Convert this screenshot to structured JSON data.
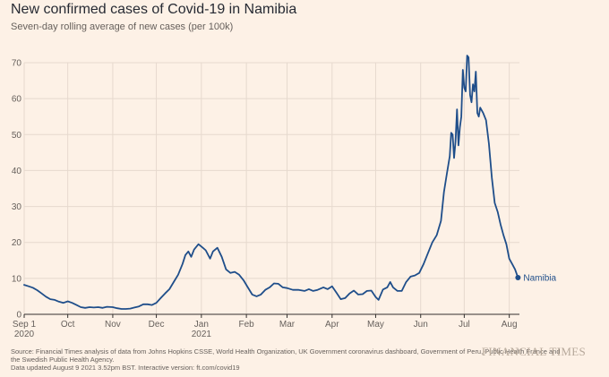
{
  "header": {
    "title": "New confirmed cases of Covid-19 in Namibia",
    "subtitle": "Seven-day rolling average of new cases (per 100k)"
  },
  "footer": {
    "source_line1": "Source: Financial Times analysis of data from Johns Hopkins CSSE, World Health Organization, UK Government coronavirus dashboard, Government of Peru, Public Health France and",
    "source_line2": "the Swedish Public Health Agency.",
    "updated": "Data updated August 9 2021 3.52pm BST. Interactive version: ft.com/covid19",
    "logo": "FINANCIAL TIMES"
  },
  "colors": {
    "background": "#fdf1e6",
    "line": "#1f4e8a",
    "grid": "#e6d9ce",
    "axis": "#33302e"
  },
  "chart_data": {
    "type": "line",
    "title": "New confirmed cases of Covid-19 in Namibia",
    "subtitle": "Seven-day rolling average of new cases (per 100k)",
    "xlabel": "",
    "ylabel": "",
    "x_range": [
      "2020-09-01",
      "2021-08-08"
    ],
    "ylim": [
      0,
      70
    ],
    "y_ticks": [
      0,
      10,
      20,
      30,
      40,
      50,
      60,
      70
    ],
    "x_ticks": [
      {
        "date": "2020-09-01",
        "label": "Sep 1",
        "sublabel": "2020"
      },
      {
        "date": "2020-10-01",
        "label": "Oct",
        "sublabel": ""
      },
      {
        "date": "2020-11-01",
        "label": "Nov",
        "sublabel": ""
      },
      {
        "date": "2020-12-01",
        "label": "Dec",
        "sublabel": ""
      },
      {
        "date": "2021-01-01",
        "label": "Jan",
        "sublabel": "2021"
      },
      {
        "date": "2021-02-01",
        "label": "Feb",
        "sublabel": ""
      },
      {
        "date": "2021-03-01",
        "label": "Mar",
        "sublabel": ""
      },
      {
        "date": "2021-04-01",
        "label": "Apr",
        "sublabel": ""
      },
      {
        "date": "2021-05-01",
        "label": "May",
        "sublabel": ""
      },
      {
        "date": "2021-06-01",
        "label": "Jun",
        "sublabel": ""
      },
      {
        "date": "2021-07-01",
        "label": "Jul",
        "sublabel": ""
      },
      {
        "date": "2021-08-01",
        "label": "Aug",
        "sublabel": ""
      }
    ],
    "grid": true,
    "series": [
      {
        "name": "Namibia",
        "points": [
          [
            "2020-09-01",
            8.2
          ],
          [
            "2020-09-04",
            7.8
          ],
          [
            "2020-09-07",
            7.4
          ],
          [
            "2020-09-10",
            6.7
          ],
          [
            "2020-09-13",
            5.8
          ],
          [
            "2020-09-16",
            4.9
          ],
          [
            "2020-09-19",
            4.2
          ],
          [
            "2020-09-22",
            4.0
          ],
          [
            "2020-09-25",
            3.5
          ],
          [
            "2020-09-28",
            3.2
          ],
          [
            "2020-10-01",
            3.6
          ],
          [
            "2020-10-04",
            3.2
          ],
          [
            "2020-10-07",
            2.6
          ],
          [
            "2020-10-10",
            2.0
          ],
          [
            "2020-10-13",
            1.8
          ],
          [
            "2020-10-16",
            2.0
          ],
          [
            "2020-10-19",
            1.9
          ],
          [
            "2020-10-22",
            2.0
          ],
          [
            "2020-10-25",
            1.8
          ],
          [
            "2020-10-28",
            2.1
          ],
          [
            "2020-11-01",
            2.0
          ],
          [
            "2020-11-04",
            1.7
          ],
          [
            "2020-11-07",
            1.5
          ],
          [
            "2020-11-10",
            1.5
          ],
          [
            "2020-11-13",
            1.6
          ],
          [
            "2020-11-16",
            1.9
          ],
          [
            "2020-11-19",
            2.2
          ],
          [
            "2020-11-22",
            2.8
          ],
          [
            "2020-11-25",
            2.8
          ],
          [
            "2020-11-28",
            2.6
          ],
          [
            "2020-12-01",
            3.2
          ],
          [
            "2020-12-04",
            4.5
          ],
          [
            "2020-12-07",
            5.8
          ],
          [
            "2020-12-10",
            7.0
          ],
          [
            "2020-12-13",
            9.0
          ],
          [
            "2020-12-16",
            11.0
          ],
          [
            "2020-12-19",
            14.0
          ],
          [
            "2020-12-21",
            16.5
          ],
          [
            "2020-12-23",
            17.5
          ],
          [
            "2020-12-25",
            16.0
          ],
          [
            "2020-12-27",
            18.0
          ],
          [
            "2020-12-30",
            19.5
          ],
          [
            "2021-01-02",
            18.5
          ],
          [
            "2021-01-04",
            17.8
          ],
          [
            "2021-01-07",
            15.5
          ],
          [
            "2021-01-09",
            17.5
          ],
          [
            "2021-01-12",
            18.5
          ],
          [
            "2021-01-15",
            16.0
          ],
          [
            "2021-01-18",
            12.5
          ],
          [
            "2021-01-21",
            11.5
          ],
          [
            "2021-01-24",
            11.8
          ],
          [
            "2021-01-27",
            11.0
          ],
          [
            "2021-01-30",
            9.5
          ],
          [
            "2021-02-02",
            7.5
          ],
          [
            "2021-02-05",
            5.5
          ],
          [
            "2021-02-08",
            5.0
          ],
          [
            "2021-02-11",
            5.5
          ],
          [
            "2021-02-14",
            6.8
          ],
          [
            "2021-02-17",
            7.5
          ],
          [
            "2021-02-20",
            8.6
          ],
          [
            "2021-02-23",
            8.5
          ],
          [
            "2021-02-26",
            7.5
          ],
          [
            "2021-03-01",
            7.3
          ],
          [
            "2021-03-05",
            6.8
          ],
          [
            "2021-03-09",
            6.8
          ],
          [
            "2021-03-13",
            6.5
          ],
          [
            "2021-03-16",
            7.0
          ],
          [
            "2021-03-19",
            6.5
          ],
          [
            "2021-03-22",
            6.8
          ],
          [
            "2021-03-26",
            7.5
          ],
          [
            "2021-03-29",
            7.0
          ],
          [
            "2021-04-01",
            7.8
          ],
          [
            "2021-04-04",
            6.0
          ],
          [
            "2021-04-07",
            4.2
          ],
          [
            "2021-04-10",
            4.5
          ],
          [
            "2021-04-13",
            5.8
          ],
          [
            "2021-04-16",
            6.6
          ],
          [
            "2021-04-19",
            5.5
          ],
          [
            "2021-04-22",
            5.6
          ],
          [
            "2021-04-25",
            6.5
          ],
          [
            "2021-04-28",
            6.6
          ],
          [
            "2021-05-01",
            4.8
          ],
          [
            "2021-05-03",
            4.0
          ],
          [
            "2021-05-06",
            6.9
          ],
          [
            "2021-05-09",
            7.5
          ],
          [
            "2021-05-11",
            9.0
          ],
          [
            "2021-05-13",
            7.5
          ],
          [
            "2021-05-16",
            6.5
          ],
          [
            "2021-05-19",
            6.5
          ],
          [
            "2021-05-22",
            9.0
          ],
          [
            "2021-05-25",
            10.5
          ],
          [
            "2021-05-28",
            10.8
          ],
          [
            "2021-05-31",
            11.5
          ],
          [
            "2021-06-03",
            14.0
          ],
          [
            "2021-06-06",
            17.0
          ],
          [
            "2021-06-09",
            20.0
          ],
          [
            "2021-06-12",
            22.0
          ],
          [
            "2021-06-15",
            26.0
          ],
          [
            "2021-06-17",
            34.0
          ],
          [
            "2021-06-19",
            39.0
          ],
          [
            "2021-06-21",
            44.0
          ],
          [
            "2021-06-22",
            50.5
          ],
          [
            "2021-06-23",
            50.0
          ],
          [
            "2021-06-24",
            43.5
          ],
          [
            "2021-06-25",
            48.0
          ],
          [
            "2021-06-26",
            57.0
          ],
          [
            "2021-06-27",
            47.0
          ],
          [
            "2021-06-28",
            52.0
          ],
          [
            "2021-06-29",
            55.0
          ],
          [
            "2021-06-30",
            68.0
          ],
          [
            "2021-07-01",
            63.0
          ],
          [
            "2021-07-02",
            62.0
          ],
          [
            "2021-07-03",
            72.0
          ],
          [
            "2021-07-04",
            71.5
          ],
          [
            "2021-07-05",
            61.0
          ],
          [
            "2021-07-06",
            59.0
          ],
          [
            "2021-07-07",
            64.0
          ],
          [
            "2021-07-08",
            62.0
          ],
          [
            "2021-07-09",
            67.5
          ],
          [
            "2021-07-10",
            56.0
          ],
          [
            "2021-07-11",
            55.0
          ],
          [
            "2021-07-12",
            57.5
          ],
          [
            "2021-07-14",
            56.0
          ],
          [
            "2021-07-16",
            54.0
          ],
          [
            "2021-07-18",
            47.5
          ],
          [
            "2021-07-20",
            38.0
          ],
          [
            "2021-07-22",
            31.0
          ],
          [
            "2021-07-24",
            28.5
          ],
          [
            "2021-07-26",
            25.0
          ],
          [
            "2021-07-28",
            22.0
          ],
          [
            "2021-07-30",
            19.5
          ],
          [
            "2021-08-01",
            15.5
          ],
          [
            "2021-08-03",
            14.0
          ],
          [
            "2021-08-05",
            12.5
          ],
          [
            "2021-08-07",
            10.2
          ]
        ]
      }
    ]
  }
}
